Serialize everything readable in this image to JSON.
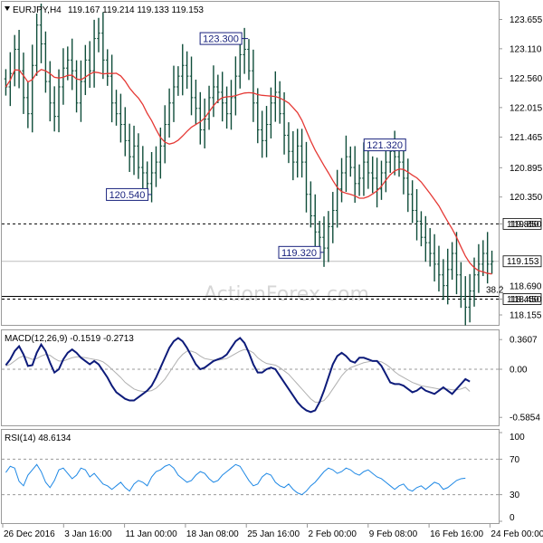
{
  "price_header": {
    "symbol": "EURJPY,H4",
    "ohlc": "119.167 119.214 119.133 119.153"
  },
  "watermark": "ActionForex.com",
  "chart_data": [
    {
      "type": "candlestick",
      "panel": "price",
      "ylim": [
        118.02,
        123.95
      ],
      "y_ticks": [
        "123.655",
        "123.110",
        "122.560",
        "122.015",
        "121.465",
        "120.895",
        "120.350",
        "119.850",
        "119.153",
        "118.690",
        "118.450",
        "118.155"
      ],
      "y_tick_values": [
        123.655,
        123.11,
        122.56,
        122.015,
        121.465,
        120.895,
        120.35,
        119.85,
        119.153,
        118.69,
        118.45,
        118.155
      ],
      "hlines": [
        {
          "value": 119.85,
          "label": "119.850",
          "style": "dashed"
        },
        {
          "value": 118.45,
          "label": "118.450",
          "style": "dashed"
        },
        {
          "value": 118.5,
          "label": "",
          "style": "solid"
        }
      ],
      "current_price": {
        "value": 119.153,
        "label": "119.153"
      },
      "fib_label": "38.2",
      "annotations": [
        {
          "text": "123.300",
          "x_index": 54,
          "value": 123.3
        },
        {
          "text": "120.540",
          "x_index": 33,
          "value": 120.54
        },
        {
          "text": "121.320",
          "x_index": 87,
          "value": 121.32
        },
        {
          "text": "119.320",
          "x_index": 72,
          "value": 119.32
        }
      ],
      "closes": [
        122.4,
        122.65,
        123.1,
        122.7,
        122.2,
        121.9,
        122.8,
        123.55,
        123.2,
        122.5,
        122.1,
        121.85,
        122.4,
        122.75,
        122.9,
        122.7,
        122.1,
        122.5,
        122.9,
        122.7,
        123.3,
        123.4,
        122.9,
        122.6,
        122.1,
        121.9,
        121.7,
        121.4,
        121.1,
        121.3,
        120.9,
        120.8,
        120.6,
        120.8,
        121.0,
        121.3,
        121.7,
        122.1,
        122.4,
        122.6,
        122.8,
        122.6,
        122.2,
        122.0,
        121.6,
        121.8,
        122.2,
        122.4,
        122.3,
        122.1,
        121.9,
        122.2,
        122.6,
        123.0,
        123.1,
        122.7,
        122.1,
        121.6,
        121.4,
        121.7,
        122.1,
        122.3,
        121.9,
        121.5,
        121.2,
        121.0,
        121.3,
        121.0,
        120.4,
        120.0,
        119.7,
        119.6,
        119.4,
        119.8,
        120.1,
        120.5,
        120.8,
        121.1,
        120.9,
        120.6,
        120.7,
        121.0,
        120.8,
        120.7,
        120.5,
        120.8,
        121.0,
        121.2,
        121.1,
        121.0,
        120.7,
        120.4,
        120.1,
        119.9,
        119.6,
        119.5,
        119.3,
        119.1,
        118.9,
        118.7,
        119.0,
        119.3,
        118.9,
        118.5,
        118.3,
        118.6,
        118.9,
        119.1,
        119.3,
        119.1,
        119.15
      ],
      "x_tick_labels": [
        "26 Dec 2016",
        "3 Jan 16:00",
        "11 Jan 00:00",
        "18 Jan 08:00",
        "25 Jan 16:00",
        "2 Feb 00:00",
        "9 Feb 08:00",
        "16 Feb 16:00",
        "24 Feb 00:00"
      ]
    },
    {
      "type": "line",
      "panel": "macd",
      "title": "MACD(12,26,9) -0.1519 -0.2713",
      "y_ticks": [
        "0.3607",
        "0.00",
        "-0.5854"
      ],
      "y_tick_values": [
        0.3607,
        0.0,
        -0.5854
      ],
      "ylim": [
        -0.66,
        0.44
      ],
      "series": [
        {
          "values": [
            0.05,
            0.12,
            0.22,
            0.28,
            0.18,
            0.04,
            0.05,
            0.2,
            0.3,
            0.22,
            0.08,
            -0.04,
            0.0,
            0.12,
            0.2,
            0.24,
            0.2,
            0.14,
            0.1,
            0.06,
            0.1,
            0.06,
            -0.02,
            -0.1,
            -0.2,
            -0.28,
            -0.32,
            -0.36,
            -0.38,
            -0.38,
            -0.34,
            -0.3,
            -0.26,
            -0.2,
            -0.1,
            0.02,
            0.14,
            0.26,
            0.34,
            0.38,
            0.34,
            0.26,
            0.16,
            0.06,
            0.0,
            0.02,
            0.06,
            0.1,
            0.12,
            0.14,
            0.18,
            0.26,
            0.34,
            0.38,
            0.32,
            0.2,
            0.06,
            -0.04,
            -0.04,
            0.0,
            0.02,
            0.0,
            -0.08,
            -0.16,
            -0.24,
            -0.32,
            -0.4,
            -0.46,
            -0.5,
            -0.52,
            -0.5,
            -0.4,
            -0.26,
            -0.1,
            0.06,
            0.16,
            0.2,
            0.16,
            0.1,
            0.08,
            0.14,
            0.14,
            0.12,
            0.1,
            0.1,
            0.04,
            -0.06,
            -0.16,
            -0.18,
            -0.18,
            -0.2,
            -0.24,
            -0.28,
            -0.26,
            -0.22,
            -0.26,
            -0.28,
            -0.3,
            -0.26,
            -0.22,
            -0.26,
            -0.3,
            -0.24,
            -0.18,
            -0.12,
            -0.15
          ]
        },
        {
          "values": [
            0.04,
            0.06,
            0.1,
            0.14,
            0.16,
            0.14,
            0.12,
            0.13,
            0.16,
            0.18,
            0.17,
            0.13,
            0.1,
            0.1,
            0.12,
            0.14,
            0.15,
            0.15,
            0.14,
            0.13,
            0.12,
            0.11,
            0.09,
            0.05,
            0.0,
            -0.05,
            -0.1,
            -0.16,
            -0.2,
            -0.24,
            -0.26,
            -0.27,
            -0.27,
            -0.26,
            -0.23,
            -0.18,
            -0.12,
            -0.04,
            0.04,
            0.12,
            0.18,
            0.22,
            0.22,
            0.2,
            0.16,
            0.13,
            0.12,
            0.11,
            0.11,
            0.12,
            0.13,
            0.16,
            0.19,
            0.22,
            0.24,
            0.23,
            0.2,
            0.14,
            0.1,
            0.07,
            0.06,
            0.05,
            0.02,
            -0.02,
            -0.06,
            -0.12,
            -0.18,
            -0.24,
            -0.3,
            -0.36,
            -0.4,
            -0.4,
            -0.38,
            -0.32,
            -0.24,
            -0.16,
            -0.08,
            -0.02,
            0.02,
            0.04,
            0.06,
            0.08,
            0.09,
            0.1,
            0.1,
            0.09,
            0.06,
            0.02,
            -0.03,
            -0.07,
            -0.1,
            -0.13,
            -0.16,
            -0.18,
            -0.2,
            -0.21,
            -0.22,
            -0.23,
            -0.24,
            -0.24,
            -0.24,
            -0.25,
            -0.25,
            -0.24,
            -0.22,
            -0.27
          ]
        }
      ]
    },
    {
      "type": "line",
      "panel": "rsi",
      "title": "RSI(14) 48.6134",
      "y_ticks": [
        "100",
        "70",
        "30",
        "0"
      ],
      "y_tick_values": [
        100,
        70,
        30,
        0
      ],
      "ylim": [
        0,
        100
      ],
      "series": [
        {
          "values": [
            55,
            62,
            60,
            45,
            40,
            52,
            58,
            64,
            56,
            44,
            38,
            46,
            58,
            60,
            54,
            48,
            52,
            60,
            58,
            50,
            54,
            48,
            42,
            40,
            36,
            40,
            44,
            38,
            34,
            42,
            46,
            44,
            40,
            50,
            56,
            58,
            62,
            64,
            60,
            52,
            48,
            44,
            46,
            52,
            56,
            54,
            48,
            44,
            46,
            52,
            56,
            60,
            64,
            62,
            54,
            46,
            40,
            42,
            50,
            54,
            52,
            44,
            40,
            38,
            42,
            36,
            32,
            30,
            34,
            40,
            44,
            50,
            56,
            60,
            58,
            54,
            56,
            60,
            58,
            54,
            52,
            56,
            58,
            54,
            50,
            48,
            44,
            40,
            36,
            40,
            42,
            36,
            34,
            38,
            40,
            36,
            40,
            44,
            42,
            36,
            38,
            42,
            46,
            48,
            48.6
          ]
        }
      ]
    }
  ]
}
